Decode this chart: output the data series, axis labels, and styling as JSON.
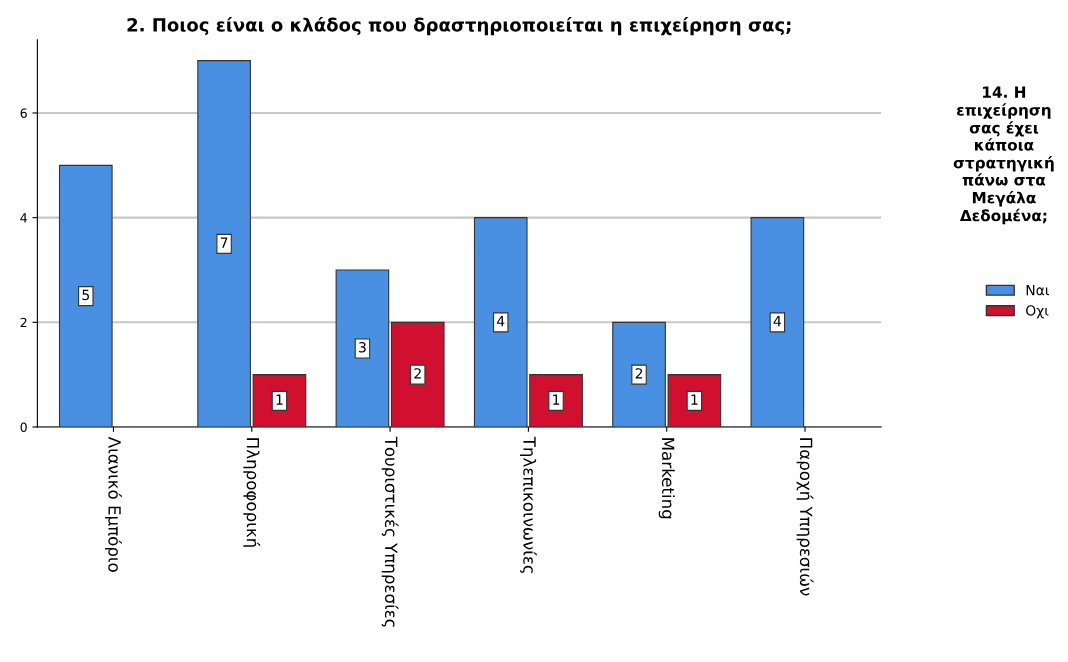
{
  "chart_data": {
    "type": "bar",
    "title": "2. Ποιος είναι ο κλάδος που δραστηριοποιείται η επιχείρηση σας;",
    "categories": [
      "Λιανικό Εμπόριο",
      "Πληροφορική",
      "Τουριστικές Υπηρεσίες",
      "Τηλεπικοινωνίες",
      "Marketing",
      "Παροχή Υπηρεσιών"
    ],
    "series": [
      {
        "name": "Ναι",
        "color": "#4a90e2",
        "values": [
          5,
          7,
          3,
          4,
          2,
          4
        ]
      },
      {
        "name": "Οχι",
        "color": "#d0102e",
        "values": [
          null,
          1,
          2,
          1,
          1,
          null
        ]
      }
    ],
    "legend_title": "14. Η επιχείρηση σας έχει κάποια στρατηγική πάνω στα Μεγάλα Δεδομένα;",
    "ylim": [
      0,
      7.4
    ],
    "yticks": [
      0,
      2,
      4,
      6
    ],
    "grid": "y",
    "legend": "right",
    "data_labels": true
  }
}
